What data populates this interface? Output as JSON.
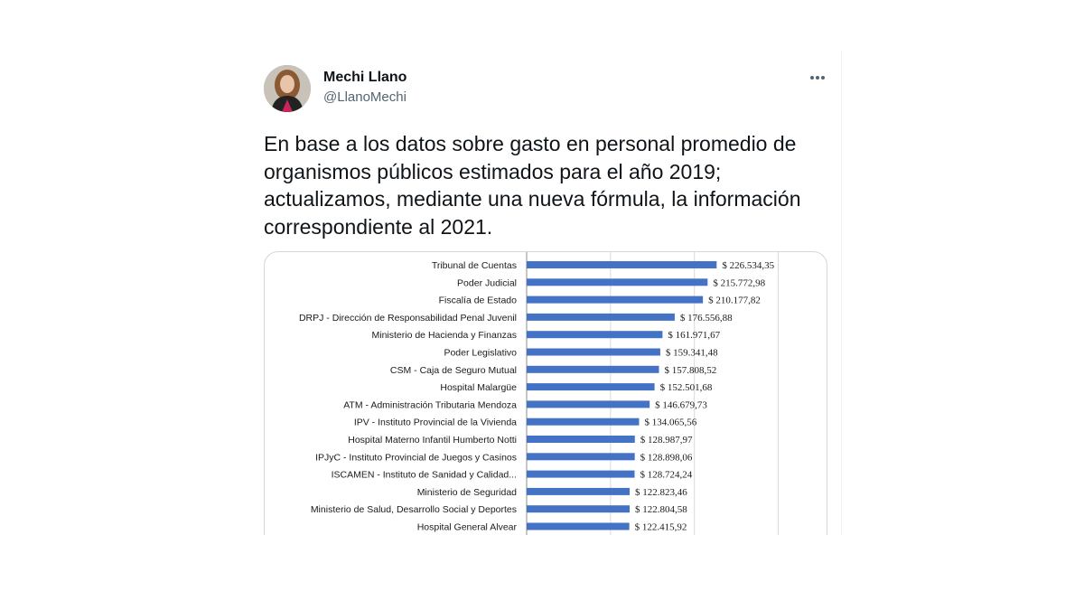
{
  "tweet": {
    "author_name": "Mechi Llano",
    "author_handle": "@LlanoMechi",
    "more_icon": "more-horizontal-icon",
    "text": "En base a los datos sobre gasto en personal promedio de organismos públicos estimados para el año 2019; actualizamos, mediante una nueva fórmula, la información correspondiente al 2021."
  },
  "colors": {
    "bar": "#4472c4",
    "name": "#0f1419",
    "handle": "#536471"
  },
  "chart_data": {
    "type": "bar",
    "orientation": "horizontal",
    "grid": true,
    "categories": [
      "Tribunal de Cuentas",
      "Poder Judicial",
      "Fiscalía de Estado",
      "DRPJ - Dirección de Responsabilidad Penal Juvenil",
      "Ministerio de Hacienda y Finanzas",
      "Poder Legislativo",
      "CSM - Caja de Seguro Mutual",
      "Hospital Malargüe",
      "ATM - Administración Tributaria Mendoza",
      "IPV - Instituto Provincial de la Vivienda",
      "Hospital Materno Infantil Humberto Notti",
      "IPJyC - Instituto Provincial de Juegos y Casinos",
      "ISCAMEN - Instituto de Sanidad y Calidad...",
      "Ministerio de Seguridad",
      "Ministerio de Salud, Desarrollo Social y Deportes",
      "Hospital General Alvear"
    ],
    "values": [
      226534.35,
      215772.98,
      210177.82,
      176556.88,
      161971.67,
      159341.48,
      157808.52,
      152501.68,
      146679.73,
      134065.56,
      128987.97,
      128898.06,
      128724.24,
      122823.46,
      122804.58,
      122415.92
    ],
    "labels": [
      "$ 226.534,35",
      "$ 215.772,98",
      "$ 210.177,82",
      "$ 176.556,88",
      "$ 161.971,67",
      "$ 159.341,48",
      "$ 157.808,52",
      "$ 152.501,68",
      "$ 146.679,73",
      "$ 134.065,56",
      "$ 128.987,97",
      "$ 128.898,06",
      "$ 128.724,24",
      "$ 122.823,46",
      "$ 122.804,58",
      "$ 122.415,92"
    ]
  }
}
